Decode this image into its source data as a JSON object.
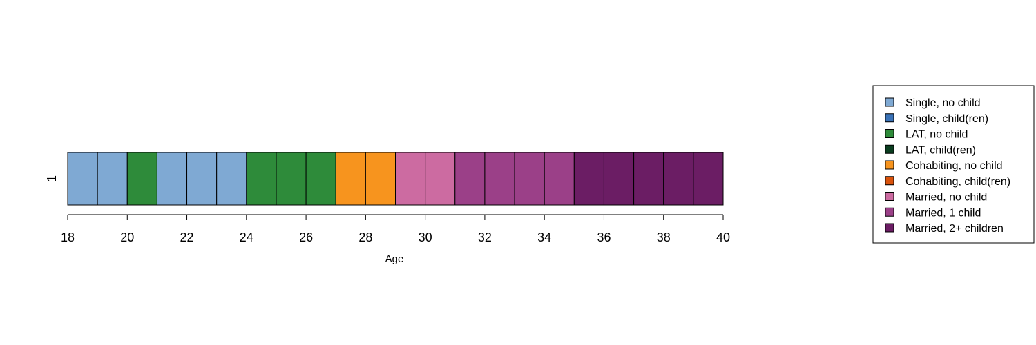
{
  "chart_data": {
    "type": "sequence_index_plot",
    "sequence_id": "1",
    "xlabel": "Age",
    "x_range": [
      18,
      40
    ],
    "x_ticks": [
      18,
      20,
      22,
      24,
      26,
      28,
      30,
      32,
      34,
      36,
      38,
      40
    ],
    "states": [
      {
        "name": "Single, no child",
        "color": "#7fa9d3"
      },
      {
        "name": "Single, child(ren)",
        "color": "#3a72b7"
      },
      {
        "name": "LAT, no child",
        "color": "#2e8b3a"
      },
      {
        "name": "LAT, child(ren)",
        "color": "#0a3d1f"
      },
      {
        "name": "Cohabiting, no child",
        "color": "#f7941e"
      },
      {
        "name": "Cohabiting, child(ren)",
        "color": "#d9520b"
      },
      {
        "name": "Married, no child",
        "color": "#cc6ba1"
      },
      {
        "name": "Married, 1 child",
        "color": "#9b4088"
      },
      {
        "name": "Married, 2+ children",
        "color": "#6b1d64"
      }
    ],
    "sequence": [
      {
        "age": 18,
        "state": "Single, no child"
      },
      {
        "age": 19,
        "state": "Single, no child"
      },
      {
        "age": 20,
        "state": "LAT, no child"
      },
      {
        "age": 21,
        "state": "Single, no child"
      },
      {
        "age": 22,
        "state": "Single, no child"
      },
      {
        "age": 23,
        "state": "Single, no child"
      },
      {
        "age": 24,
        "state": "LAT, no child"
      },
      {
        "age": 25,
        "state": "LAT, no child"
      },
      {
        "age": 26,
        "state": "LAT, no child"
      },
      {
        "age": 27,
        "state": "Cohabiting, no child"
      },
      {
        "age": 28,
        "state": "Cohabiting, no child"
      },
      {
        "age": 29,
        "state": "Married, no child"
      },
      {
        "age": 30,
        "state": "Married, no child"
      },
      {
        "age": 31,
        "state": "Married, 1 child"
      },
      {
        "age": 32,
        "state": "Married, 1 child"
      },
      {
        "age": 33,
        "state": "Married, 1 child"
      },
      {
        "age": 34,
        "state": "Married, 1 child"
      },
      {
        "age": 35,
        "state": "Married, 2+ children"
      },
      {
        "age": 36,
        "state": "Married, 2+ children"
      },
      {
        "age": 37,
        "state": "Married, 2+ children"
      },
      {
        "age": 38,
        "state": "Married, 2+ children"
      },
      {
        "age": 39,
        "state": "Married, 2+ children"
      }
    ],
    "legend_position": "right"
  }
}
